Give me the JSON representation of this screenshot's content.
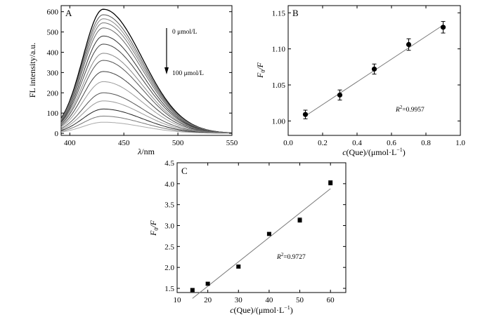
{
  "chart_data": [
    {
      "panel": "A",
      "type": "line",
      "xlabel_italic": "λ",
      "xlabel_rest": "/nm",
      "ylabel": "FL intensity/a.u.",
      "xlim": [
        392,
        550
      ],
      "ylim": [
        -10,
        630
      ],
      "xticks": [
        400,
        450,
        500,
        550
      ],
      "yticks": [
        0,
        100,
        200,
        300,
        400,
        500,
        600
      ],
      "annotation_top": "0 μmol/L",
      "annotation_bottom": "100 μmol/L",
      "peak_x": 431,
      "series_peaks": [
        612,
        585,
        565,
        545,
        520,
        480,
        440,
        395,
        360,
        305,
        255,
        200,
        160,
        120,
        85,
        55
      ],
      "series_colors": [
        "#000000",
        "#555555",
        "#888888",
        "#777777",
        "#666666",
        "#333333",
        "#444444",
        "#888888",
        "#555555",
        "#444444",
        "#999999",
        "#555555",
        "#999999",
        "#222222",
        "#777777",
        "#aaaaaa"
      ]
    },
    {
      "panel": "B",
      "type": "scatter",
      "ylabel_parts": [
        "F",
        "0",
        "/F"
      ],
      "xlabel_parts": [
        "c",
        "(Que)/(μmol·L",
        "−1",
        ")"
      ],
      "xlim": [
        0.0,
        1.0
      ],
      "ylim": [
        0.98,
        1.16
      ],
      "xticks": [
        0.0,
        0.2,
        0.4,
        0.6,
        0.8,
        1.0
      ],
      "yticks": [
        1.0,
        1.05,
        1.1,
        1.15
      ],
      "points": [
        {
          "x": 0.1,
          "y": 1.009,
          "err": 0.006
        },
        {
          "x": 0.3,
          "y": 1.036,
          "err": 0.007
        },
        {
          "x": 0.5,
          "y": 1.072,
          "err": 0.007
        },
        {
          "x": 0.7,
          "y": 1.106,
          "err": 0.008
        },
        {
          "x": 0.9,
          "y": 1.13,
          "err": 0.008
        }
      ],
      "fit_line": {
        "x": [
          0.1,
          0.9
        ],
        "y": [
          1.007,
          1.133
        ]
      },
      "r2_label": "R",
      "r2_exp": "2",
      "r2_value": "=0.9957"
    },
    {
      "panel": "C",
      "type": "scatter",
      "ylabel_parts": [
        "F",
        "0",
        "/F"
      ],
      "xlabel_parts": [
        "c",
        "(Que)/(μmol·L",
        "−1",
        ")"
      ],
      "xlim": [
        10,
        65
      ],
      "ylim": [
        1.4,
        4.5
      ],
      "xticks": [
        10,
        20,
        30,
        40,
        50,
        60
      ],
      "yticks": [
        1.5,
        2.0,
        2.5,
        3.0,
        3.5,
        4.0,
        4.5
      ],
      "points": [
        {
          "x": 15,
          "y": 1.46,
          "err": 0.04
        },
        {
          "x": 20,
          "y": 1.61,
          "err": 0.04
        },
        {
          "x": 30,
          "y": 2.02,
          "err": 0.04
        },
        {
          "x": 40,
          "y": 2.8,
          "err": 0.04
        },
        {
          "x": 50,
          "y": 3.13,
          "err": 0.05
        },
        {
          "x": 60,
          "y": 4.02,
          "err": 0.05
        }
      ],
      "fit_line": {
        "x": [
          15,
          60
        ],
        "y": [
          1.26,
          3.88
        ]
      },
      "r2_label": "R",
      "r2_exp": "2",
      "r2_value": "=0.9727"
    }
  ]
}
